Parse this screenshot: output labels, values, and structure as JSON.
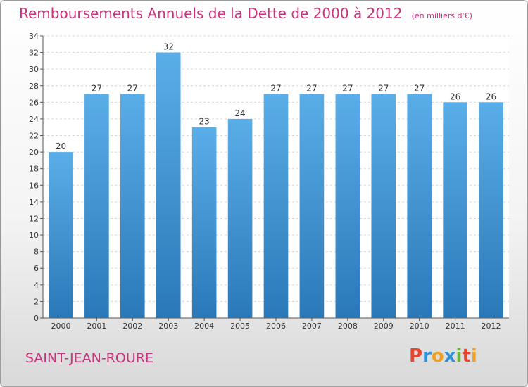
{
  "header": {
    "title": "Remboursements Annuels de la Dette de 2000 à 2012",
    "unit": "(en milliers d'€)"
  },
  "footer": {
    "commune": "SAINT-JEAN-ROURE",
    "logo_text": "Proxiti"
  },
  "colors": {
    "title": "#c8327a",
    "bar_top": "#5aaee8",
    "bar_bottom": "#2a78b8",
    "logo": [
      "#e8452e",
      "#2f8fd8",
      "#f0a020",
      "#2f8fd8",
      "#6ab536",
      "#e8452e",
      "#f0a020"
    ]
  },
  "chart_data": {
    "type": "bar",
    "categories": [
      "2000",
      "2001",
      "2002",
      "2003",
      "2004",
      "2005",
      "2006",
      "2007",
      "2008",
      "2009",
      "2010",
      "2011",
      "2012"
    ],
    "values": [
      20,
      27,
      27,
      32,
      23,
      24,
      27,
      27,
      27,
      27,
      27,
      26,
      26
    ],
    "ylim": [
      0,
      34
    ],
    "yticks": [
      0,
      2,
      4,
      6,
      8,
      10,
      12,
      14,
      16,
      18,
      20,
      22,
      24,
      26,
      28,
      30,
      32,
      34
    ],
    "grid": true
  }
}
